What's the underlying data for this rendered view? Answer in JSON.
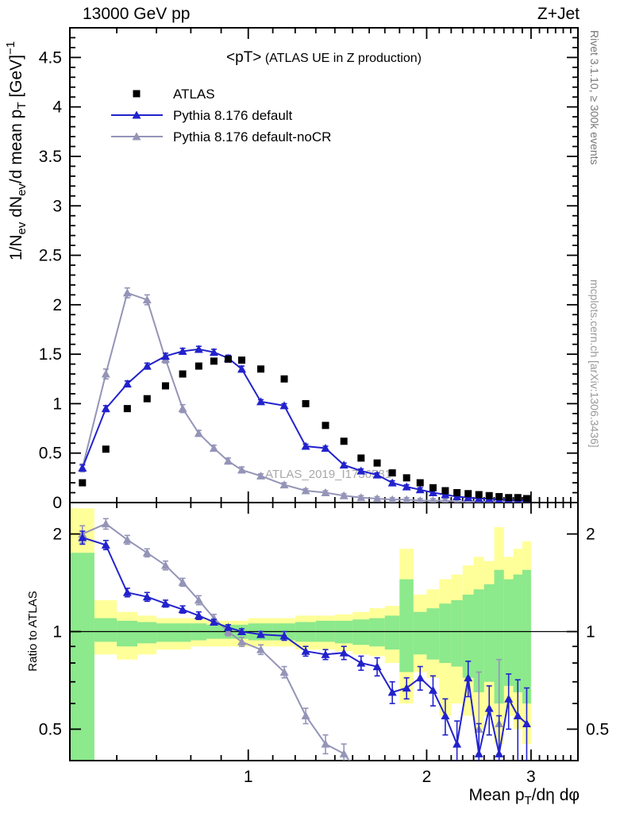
{
  "header": {
    "left": "13000 GeV pp",
    "right": "Z+Jet"
  },
  "right_margin": {
    "top": "Rivet 3.1.10, ≥ 300k events",
    "bottom": "mcplots.cern.ch [arXiv:1306.3436]"
  },
  "watermark": "ATLAS_2019_I1736531",
  "chart_data": {
    "type": "line",
    "title_parts": [
      {
        "t": "<pT>",
        "size": 19
      },
      {
        "t": " (ATLAS UE in Z production)",
        "size": 16
      }
    ],
    "xlim": [
      0.5,
      3.6
    ],
    "x_log": true,
    "x_ticks_major": [
      1,
      2,
      3
    ],
    "x_tick_labels": [
      "1",
      "2",
      "3"
    ],
    "xlabel_parts": [
      {
        "t": "Mean p"
      },
      {
        "t": "T",
        "sub": true
      },
      {
        "t": "/dη dφ"
      }
    ],
    "main": {
      "ylim": [
        0,
        4.8
      ],
      "yticks": [
        0,
        0.5,
        1,
        1.5,
        2,
        2.5,
        3,
        3.5,
        4,
        4.5
      ],
      "ytick_labels": [
        "0",
        "0.5",
        "1",
        "1.5",
        "2",
        "2.5",
        "3",
        "3.5",
        "4",
        "4.5"
      ],
      "ylabel_parts": [
        {
          "t": "1/N"
        },
        {
          "t": "ev",
          "sub": true
        },
        {
          "t": " dN"
        },
        {
          "t": "ev",
          "sub": true
        },
        {
          "t": "/d mean p"
        },
        {
          "t": "T",
          "sub": true
        },
        {
          "t": " [GeV]"
        },
        {
          "t": "−1",
          "sup": true
        }
      ]
    },
    "ratio": {
      "ylim": [
        0.4,
        2.5
      ],
      "ylabel": "Ratio to ATLAS",
      "yticks": [
        0.5,
        1,
        2
      ],
      "ytick_labels": [
        "0.5",
        "1",
        "2"
      ],
      "yticks_minor": [
        0.4,
        0.6,
        0.7,
        0.8,
        0.9
      ]
    },
    "x": [
      0.525,
      0.575,
      0.625,
      0.675,
      0.725,
      0.775,
      0.825,
      0.875,
      0.925,
      0.975,
      1.05,
      1.15,
      1.25,
      1.35,
      1.45,
      1.55,
      1.65,
      1.75,
      1.85,
      1.95,
      2.05,
      2.15,
      2.25,
      2.35,
      2.45,
      2.55,
      2.65,
      2.75,
      2.85,
      2.95
    ],
    "series": [
      {
        "name": "ATLAS",
        "marker": "square",
        "color": "#000000",
        "line": false,
        "values": [
          0.2,
          0.54,
          0.95,
          1.05,
          1.18,
          1.3,
          1.38,
          1.43,
          1.45,
          1.44,
          1.35,
          1.25,
          1.0,
          0.78,
          0.62,
          0.45,
          0.4,
          0.3,
          0.25,
          0.2,
          0.15,
          0.12,
          0.1,
          0.09,
          0.08,
          0.07,
          0.06,
          0.05,
          0.05,
          0.04
        ],
        "errors": [
          0.02,
          0.02,
          0.02,
          0.02,
          0.02,
          0.02,
          0.02,
          0.02,
          0.02,
          0.02,
          0.02,
          0.02,
          0.02,
          0.02,
          0.02,
          0.02,
          0.02,
          0.02,
          0.02,
          0.02,
          0.02,
          0.02,
          0.02,
          0.02,
          0.02,
          0.02,
          0.02,
          0.02,
          0.02,
          0.02
        ]
      },
      {
        "name": "Pythia 8.176 default",
        "marker": "triangle",
        "color": "#2222cc",
        "line": true,
        "values": [
          0.35,
          0.95,
          1.2,
          1.38,
          1.48,
          1.53,
          1.55,
          1.52,
          1.46,
          1.35,
          1.02,
          0.98,
          0.57,
          0.55,
          0.38,
          0.32,
          0.28,
          0.2,
          0.16,
          0.13,
          0.1,
          0.08,
          0.06,
          0.05,
          0.04,
          0.04,
          0.03,
          0.03,
          0.02,
          0.02
        ],
        "errors": [
          0.03,
          0.03,
          0.03,
          0.03,
          0.03,
          0.03,
          0.03,
          0.03,
          0.03,
          0.03,
          0.02,
          0.02,
          0.02,
          0.02,
          0.02,
          0.02,
          0.02,
          0.02,
          0.02,
          0.02,
          0.02,
          0.02,
          0.02,
          0.02,
          0.02,
          0.02,
          0.02,
          0.02,
          0.02,
          0.02
        ]
      },
      {
        "name": "Pythia 8.176 default-noCR",
        "marker": "triangle",
        "color": "#9494b8",
        "line": true,
        "values": [
          0.35,
          1.3,
          2.12,
          2.05,
          1.45,
          0.95,
          0.7,
          0.55,
          0.42,
          0.33,
          0.27,
          0.18,
          0.12,
          0.1,
          0.07,
          0.05,
          0.04,
          0.03,
          0.03,
          0.02,
          0.02,
          0.02,
          0.01,
          0.01,
          0.01,
          0.01,
          0.01,
          0.01,
          0.01,
          0.01
        ],
        "errors": [
          0.04,
          0.05,
          0.05,
          0.05,
          0.04,
          0.04,
          0.03,
          0.03,
          0.03,
          0.03,
          0.02,
          0.02,
          0.02,
          0.02,
          0.02,
          0.02,
          0.02,
          0.02,
          0.02,
          0.02,
          0.02,
          0.02,
          0.02,
          0.02,
          0.02,
          0.02,
          0.02,
          0.02,
          0.02,
          0.02
        ]
      }
    ],
    "ratio_series": [
      {
        "name": "Pythia 8.176 default-noCR",
        "marker": "triangle",
        "color": "#9494b8",
        "line": true,
        "values": [
          2.0,
          2.15,
          1.92,
          1.75,
          1.6,
          1.42,
          1.25,
          1.1,
          1.0,
          0.93,
          0.88,
          0.75,
          0.55,
          0.45,
          0.42,
          0.36,
          0.3,
          null,
          null,
          null,
          null,
          null,
          null,
          null,
          0.5,
          null,
          0.52,
          null,
          null,
          null
        ],
        "errors": [
          0.12,
          0.08,
          0.06,
          0.05,
          0.05,
          0.04,
          0.04,
          0.03,
          0.03,
          0.03,
          0.03,
          0.03,
          0.03,
          0.03,
          0.03,
          0.03,
          0.03,
          0,
          0,
          0,
          0,
          0,
          0,
          0,
          0.25,
          0,
          0.3,
          0,
          0,
          0
        ]
      },
      {
        "name": "Pythia 8.176 default",
        "marker": "triangle",
        "color": "#2222cc",
        "line": true,
        "values": [
          1.95,
          1.85,
          1.32,
          1.28,
          1.22,
          1.17,
          1.12,
          1.07,
          1.03,
          1.0,
          0.98,
          0.97,
          0.87,
          0.85,
          0.86,
          0.8,
          0.78,
          0.65,
          0.67,
          0.72,
          0.66,
          0.55,
          0.45,
          0.72,
          0.42,
          0.58,
          0.42,
          0.62,
          0.55,
          0.52
        ],
        "errors": [
          0.09,
          0.06,
          0.04,
          0.04,
          0.03,
          0.03,
          0.03,
          0.02,
          0.02,
          0.02,
          0.02,
          0.03,
          0.03,
          0.03,
          0.04,
          0.04,
          0.05,
          0.05,
          0.05,
          0.06,
          0.07,
          0.07,
          0.08,
          0.09,
          0.1,
          0.1,
          0.13,
          0.12,
          0.16,
          0.15
        ]
      }
    ],
    "bands": {
      "edges": [
        0.5,
        0.55,
        0.6,
        0.65,
        0.7,
        0.75,
        0.8,
        0.85,
        0.9,
        0.95,
        1.0,
        1.1,
        1.2,
        1.3,
        1.4,
        1.5,
        1.6,
        1.7,
        1.8,
        1.9,
        2.0,
        2.1,
        2.2,
        2.3,
        2.4,
        2.5,
        2.6,
        2.7,
        2.8,
        2.9,
        3.0
      ],
      "yellow": [
        [
          0.38,
          2.4
        ],
        [
          0.85,
          1.25
        ],
        [
          0.82,
          1.15
        ],
        [
          0.85,
          1.12
        ],
        [
          0.88,
          1.1
        ],
        [
          0.88,
          1.1
        ],
        [
          0.9,
          1.1
        ],
        [
          0.9,
          1.08
        ],
        [
          0.9,
          1.08
        ],
        [
          0.9,
          1.08
        ],
        [
          0.9,
          1.1
        ],
        [
          0.9,
          1.1
        ],
        [
          0.88,
          1.12
        ],
        [
          0.88,
          1.12
        ],
        [
          0.87,
          1.13
        ],
        [
          0.85,
          1.15
        ],
        [
          0.84,
          1.18
        ],
        [
          0.8,
          1.2
        ],
        [
          0.6,
          1.8
        ],
        [
          0.75,
          1.3
        ],
        [
          0.72,
          1.35
        ],
        [
          0.55,
          1.45
        ],
        [
          0.6,
          1.5
        ],
        [
          0.55,
          1.6
        ],
        [
          0.5,
          1.7
        ],
        [
          0.55,
          1.65
        ],
        [
          0.45,
          2.1
        ],
        [
          0.55,
          1.7
        ],
        [
          0.5,
          1.8
        ],
        [
          0.45,
          1.9
        ]
      ],
      "green": [
        [
          0.38,
          1.75
        ],
        [
          0.93,
          1.1
        ],
        [
          0.9,
          1.08
        ],
        [
          0.92,
          1.07
        ],
        [
          0.93,
          1.06
        ],
        [
          0.93,
          1.06
        ],
        [
          0.94,
          1.06
        ],
        [
          0.95,
          1.05
        ],
        [
          0.95,
          1.05
        ],
        [
          0.95,
          1.05
        ],
        [
          0.94,
          1.06
        ],
        [
          0.94,
          1.06
        ],
        [
          0.93,
          1.07
        ],
        [
          0.93,
          1.08
        ],
        [
          0.92,
          1.08
        ],
        [
          0.91,
          1.09
        ],
        [
          0.9,
          1.1
        ],
        [
          0.88,
          1.12
        ],
        [
          0.75,
          1.45
        ],
        [
          0.85,
          1.15
        ],
        [
          0.82,
          1.18
        ],
        [
          0.8,
          1.22
        ],
        [
          0.78,
          1.25
        ],
        [
          0.72,
          1.3
        ],
        [
          0.65,
          1.35
        ],
        [
          0.7,
          1.4
        ],
        [
          0.6,
          1.55
        ],
        [
          0.68,
          1.45
        ],
        [
          0.65,
          1.5
        ],
        [
          0.6,
          1.55
        ]
      ]
    },
    "colors": {
      "band_yellow": "#ffff99",
      "band_green": "#8ce98c",
      "pythia_default": "#2222cc",
      "pythia_nocr": "#9494b8",
      "data": "#000000"
    }
  }
}
